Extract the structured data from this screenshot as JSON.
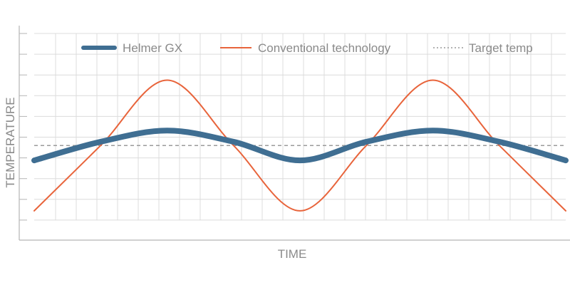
{
  "chart_data": {
    "type": "line",
    "title": "",
    "xlabel": "TIME",
    "ylabel": "TEMPERATURE",
    "x_ticks_labeled": false,
    "y_ticks_labeled": false,
    "grid": true,
    "legend_position": "top",
    "xlim": [
      0,
      100
    ],
    "ylim": [
      0,
      10
    ],
    "target": {
      "name": "Target temp",
      "value": 4.0,
      "style": "dotted",
      "color": "#9a9a9a"
    },
    "series": [
      {
        "name": "Helmer GX",
        "color": "#3f6e92",
        "style": "thick",
        "x": [
          0,
          12.5,
          25,
          37.5,
          50,
          62.5,
          75,
          87.5,
          100
        ],
        "values": [
          3.2,
          4.2,
          4.8,
          4.2,
          3.2,
          4.2,
          4.8,
          4.2,
          3.2
        ]
      },
      {
        "name": "Conventional technology",
        "color": "#e8643b",
        "style": "thin",
        "x": [
          0,
          12.5,
          25,
          37.5,
          50,
          62.5,
          75,
          87.5,
          100
        ],
        "values": [
          0.5,
          4.0,
          7.5,
          4.0,
          0.5,
          4.0,
          7.5,
          4.0,
          0.5
        ]
      }
    ]
  }
}
